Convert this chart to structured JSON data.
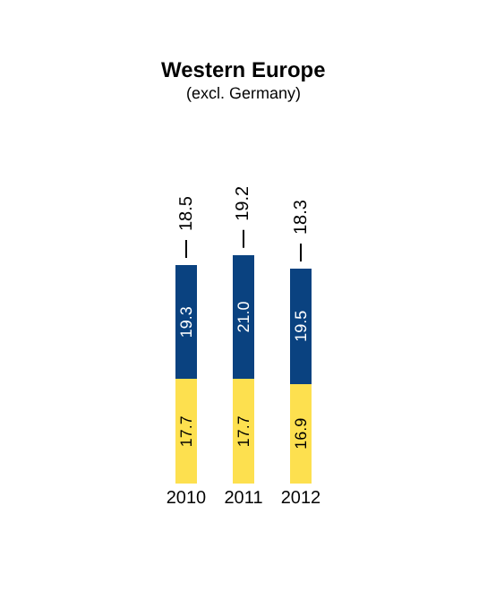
{
  "chart_data": {
    "type": "bar",
    "title": "Western Europe",
    "subtitle": "(excl. Germany)",
    "categories": [
      "2010",
      "2011",
      "2012"
    ],
    "stacked": true,
    "series": [
      {
        "color": "#fde04f",
        "values": [
          17.7,
          17.7,
          16.9
        ],
        "value_labels": [
          "17.7",
          "17.7",
          "16.9"
        ]
      },
      {
        "color": "#0a4280",
        "values": [
          19.3,
          21.0,
          19.5
        ],
        "value_labels": [
          "19.3",
          "21.0",
          "19.5"
        ]
      }
    ],
    "annotations": [
      {
        "text": "18.5",
        "x": "2010",
        "y": 37.0
      },
      {
        "text": "19.2",
        "x": "2011",
        "y": 38.7
      },
      {
        "text": "18.3",
        "x": "2012",
        "y": 36.4
      }
    ]
  }
}
